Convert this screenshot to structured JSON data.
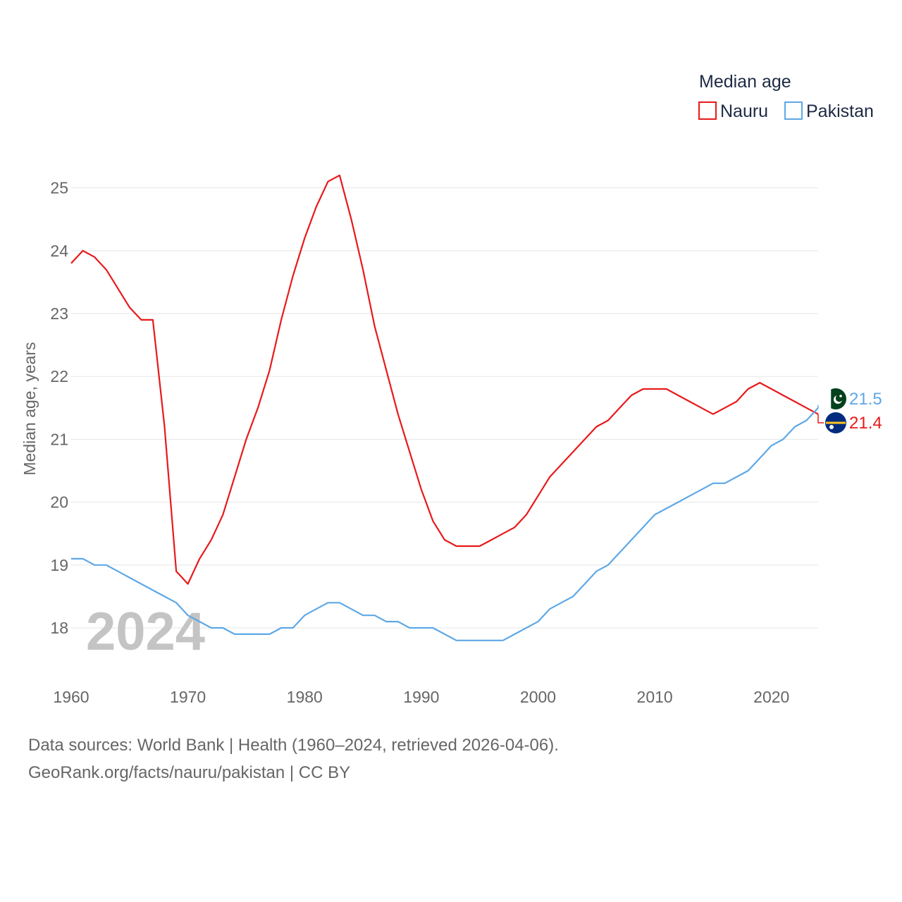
{
  "chart_data": {
    "type": "line",
    "ylabel": "Median age, years",
    "xlabel": "",
    "xlim": [
      1960,
      2024
    ],
    "ylim": [
      17.2,
      25.5
    ],
    "x_ticks": [
      1960,
      1970,
      1980,
      1990,
      2000,
      2010,
      2020
    ],
    "x_tick_labels": [
      "1960",
      "1970",
      "1980",
      "1990",
      "2000",
      "2010",
      "2020"
    ],
    "y_ticks": [
      18,
      19,
      20,
      21,
      22,
      23,
      24,
      25
    ],
    "y_tick_labels": [
      "18",
      "19",
      "20",
      "21",
      "22",
      "23",
      "24",
      "25"
    ],
    "grid": true,
    "legend": {
      "title": "Median age",
      "position": "top-right"
    },
    "year_watermark": "2024",
    "x": [
      1960,
      1961,
      1962,
      1963,
      1964,
      1965,
      1966,
      1967,
      1968,
      1969,
      1970,
      1971,
      1972,
      1973,
      1974,
      1975,
      1976,
      1977,
      1978,
      1979,
      1980,
      1981,
      1982,
      1983,
      1984,
      1985,
      1986,
      1987,
      1988,
      1989,
      1990,
      1991,
      1992,
      1993,
      1994,
      1995,
      1996,
      1997,
      1998,
      1999,
      2000,
      2001,
      2002,
      2003,
      2004,
      2005,
      2006,
      2007,
      2008,
      2009,
      2010,
      2011,
      2012,
      2013,
      2014,
      2015,
      2016,
      2017,
      2018,
      2019,
      2020,
      2021,
      2022,
      2023,
      2024
    ],
    "series": [
      {
        "name": "Nauru",
        "color": "#e8191a",
        "end_label": "21.4",
        "flag_icon": "nauru-flag-icon",
        "values": [
          23.8,
          24.0,
          23.9,
          23.7,
          23.4,
          23.1,
          22.9,
          22.9,
          21.2,
          18.9,
          18.7,
          19.1,
          19.4,
          19.8,
          20.4,
          21.0,
          21.5,
          22.1,
          22.9,
          23.6,
          24.2,
          24.7,
          25.1,
          25.2,
          24.5,
          23.7,
          22.8,
          22.1,
          21.4,
          20.8,
          20.2,
          19.7,
          19.4,
          19.3,
          19.3,
          19.3,
          19.4,
          19.5,
          19.6,
          19.8,
          20.1,
          20.4,
          20.6,
          20.8,
          21.0,
          21.2,
          21.3,
          21.5,
          21.7,
          21.8,
          21.8,
          21.8,
          21.7,
          21.6,
          21.5,
          21.4,
          21.5,
          21.6,
          21.8,
          21.9,
          21.8,
          21.7,
          21.6,
          21.5,
          21.4
        ]
      },
      {
        "name": "Pakistan",
        "color": "#5ea8e6",
        "end_label": "21.5",
        "flag_icon": "pakistan-flag-icon",
        "values": [
          19.1,
          19.1,
          19.0,
          19.0,
          18.9,
          18.8,
          18.7,
          18.6,
          18.5,
          18.4,
          18.2,
          18.1,
          18.0,
          18.0,
          17.9,
          17.9,
          17.9,
          17.9,
          18.0,
          18.0,
          18.2,
          18.3,
          18.4,
          18.4,
          18.3,
          18.2,
          18.2,
          18.1,
          18.1,
          18.0,
          18.0,
          18.0,
          17.9,
          17.8,
          17.8,
          17.8,
          17.8,
          17.8,
          17.9,
          18.0,
          18.1,
          18.3,
          18.4,
          18.5,
          18.7,
          18.9,
          19.0,
          19.2,
          19.4,
          19.6,
          19.8,
          19.9,
          20.0,
          20.1,
          20.2,
          20.3,
          20.3,
          20.4,
          20.5,
          20.7,
          20.9,
          21.0,
          21.2,
          21.3,
          21.5
        ]
      }
    ]
  },
  "footer": {
    "sources": "Data sources: World Bank | Health (1960–2024, retrieved 2026-04-06).",
    "attribution": "GeoRank.org/facts/nauru/pakistan | CC BY"
  }
}
